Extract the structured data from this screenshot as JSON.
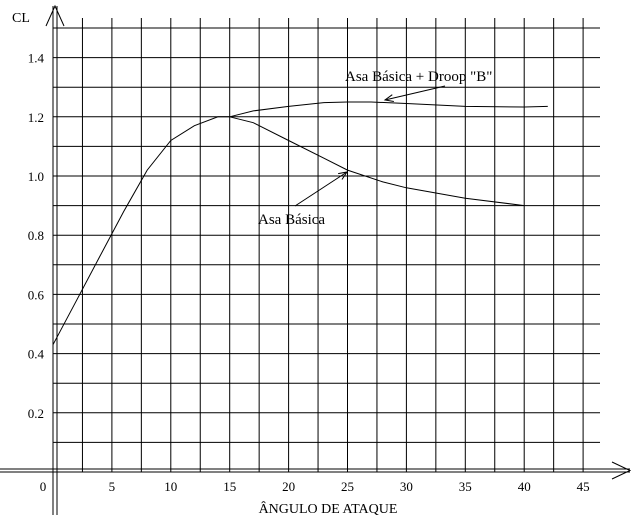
{
  "chart_data": {
    "type": "line",
    "xlabel": "ÂNGULO DE ATAQUE",
    "ylabel": "CL",
    "xlim": [
      0,
      46
    ],
    "ylim": [
      0,
      1.5
    ],
    "x_ticks": [
      0,
      5,
      10,
      15,
      20,
      25,
      30,
      35,
      40,
      45
    ],
    "y_ticks": [
      0.2,
      0.4,
      0.6,
      0.8,
      1.0,
      1.2,
      1.4
    ],
    "grid": true,
    "series": [
      {
        "name": "Asa Básica + Droop \"B\"",
        "x": [
          0,
          2,
          4,
          6,
          8,
          10,
          12,
          14,
          15,
          17,
          20,
          23,
          25,
          27,
          30,
          35,
          40,
          42
        ],
        "y": [
          0.43,
          0.58,
          0.73,
          0.88,
          1.02,
          1.12,
          1.17,
          1.2,
          1.2,
          1.22,
          1.235,
          1.248,
          1.25,
          1.25,
          1.245,
          1.235,
          1.233,
          1.235
        ]
      },
      {
        "name": "Asa Básica",
        "x": [
          15,
          17,
          20,
          23,
          25,
          28,
          30,
          35,
          40
        ],
        "y": [
          1.2,
          1.18,
          1.12,
          1.06,
          1.02,
          0.98,
          0.96,
          0.925,
          0.9
        ]
      }
    ],
    "annotations": [
      {
        "text": "Asa Básica + Droop \"B\"",
        "arrow_to": [
          27.5,
          1.25
        ]
      },
      {
        "text": "Asa Básica",
        "arrow_to": [
          25,
          1.03
        ]
      }
    ]
  }
}
